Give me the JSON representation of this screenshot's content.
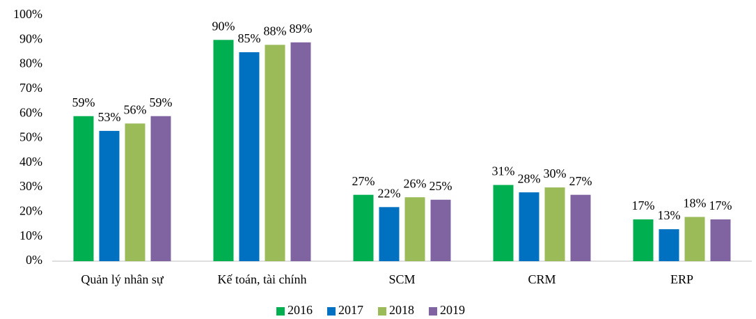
{
  "chart_data": {
    "type": "bar",
    "categories": [
      "Quản lý nhân sự",
      "Kế toán, tài chính",
      "SCM",
      "CRM",
      "ERP"
    ],
    "series": [
      {
        "name": "2016",
        "color": "#00b050",
        "values": [
          59,
          90,
          27,
          31,
          17
        ],
        "value_labels": [
          "59%",
          "90%",
          "27%",
          "31%",
          "17%"
        ]
      },
      {
        "name": "2017",
        "color": "#0070c0",
        "values": [
          53,
          85,
          22,
          28,
          13
        ],
        "value_labels": [
          "53%",
          "85%",
          "22%",
          "28%",
          "13%"
        ]
      },
      {
        "name": "2018",
        "color": "#9bbb59",
        "values": [
          56,
          88,
          26,
          30,
          18
        ],
        "value_labels": [
          "56%",
          "88%",
          "26%",
          "30%",
          "18%"
        ]
      },
      {
        "name": "2019",
        "color": "#8064a2",
        "values": [
          59,
          89,
          25,
          27,
          17
        ],
        "value_labels": [
          "59%",
          "89%",
          "25%",
          "27%",
          "17%"
        ]
      }
    ],
    "ylim": [
      0,
      100
    ],
    "yticks": [
      {
        "value": 0,
        "label": "0%"
      },
      {
        "value": 10,
        "label": "10%"
      },
      {
        "value": 20,
        "label": "20%"
      },
      {
        "value": 30,
        "label": "30%"
      },
      {
        "value": 40,
        "label": "40%"
      },
      {
        "value": 50,
        "label": "50%"
      },
      {
        "value": 60,
        "label": "60%"
      },
      {
        "value": 70,
        "label": "70%"
      },
      {
        "value": 80,
        "label": "80%"
      },
      {
        "value": 90,
        "label": "90%"
      },
      {
        "value": 100,
        "label": "100%"
      }
    ],
    "grid": false,
    "legend": "bottom"
  }
}
